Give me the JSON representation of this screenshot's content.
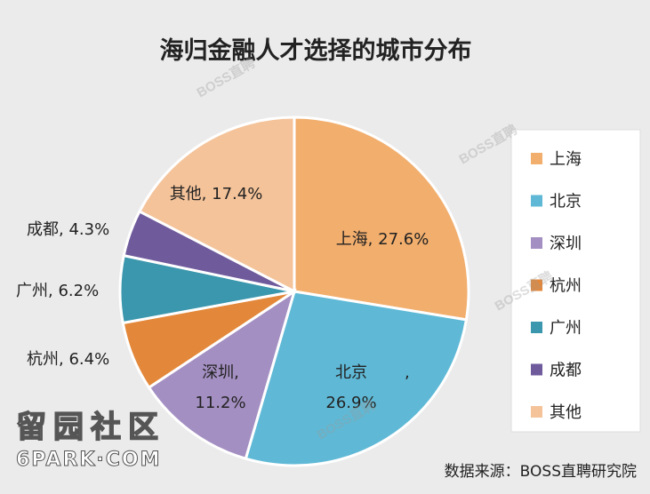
{
  "chart_data": {
    "type": "pie",
    "title": "海归金融人才选择的城市分布",
    "slices": [
      {
        "name": "上海",
        "value": 27.6,
        "label": "上海, 27.6%",
        "color": "#f2ae6d"
      },
      {
        "name": "北京",
        "value": 26.9,
        "label_lines": [
          "北京",
          "26.9%"
        ],
        "color": "#5fb9d6"
      },
      {
        "name": "深圳",
        "value": 11.2,
        "label_lines": [
          "深圳,",
          "11.2%"
        ],
        "color": "#a48fc2"
      },
      {
        "name": "杭州",
        "value": 6.4,
        "label": "杭州, 6.4%",
        "color": "#e3883a"
      },
      {
        "name": "广州",
        "value": 6.2,
        "label": "广州, 6.2%",
        "color": "#3b97ad"
      },
      {
        "name": "成都",
        "value": 4.3,
        "label": "成都, 4.3%",
        "color": "#6f5a9c"
      },
      {
        "name": "其他",
        "value": 17.4,
        "label": "其他, 17.4%",
        "color": "#f4c39a"
      }
    ],
    "legend": [
      "上海",
      "北京",
      "深圳",
      "杭州",
      "广州",
      "成都",
      "其他"
    ],
    "legend_position": "right",
    "comma_mark": ","
  },
  "source": "数据来源：BOSS直聘研究院",
  "watermark": {
    "site_cn": "留园社区",
    "site_en": "6PARK·COM",
    "brand": "BOSS直聘"
  }
}
